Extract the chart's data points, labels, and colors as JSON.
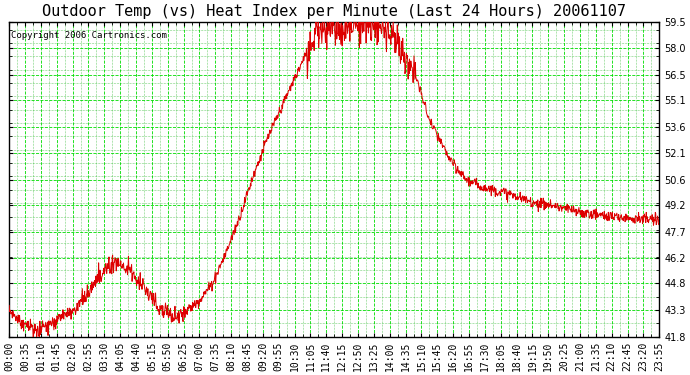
{
  "title": "Outdoor Temp (vs) Heat Index per Minute (Last 24 Hours) 20061107",
  "copyright": "Copyright 2006 Cartronics.com",
  "y_min": 41.8,
  "y_max": 59.5,
  "y_ticks": [
    41.8,
    43.3,
    44.8,
    46.2,
    47.7,
    49.2,
    50.6,
    52.1,
    53.6,
    55.1,
    56.5,
    58.0,
    59.5
  ],
  "line_color": "#dd0000",
  "grid_color": "#00dd00",
  "grid_minor_color": "#00aa00",
  "background_color": "#ffffff",
  "border_color": "#000000",
  "title_fontsize": 11,
  "copyright_fontsize": 6.5,
  "tick_fontsize": 7,
  "x_tick_labels": [
    "00:00",
    "00:35",
    "01:10",
    "01:45",
    "02:20",
    "02:55",
    "03:30",
    "04:05",
    "04:40",
    "05:15",
    "05:50",
    "06:25",
    "07:00",
    "07:35",
    "08:10",
    "08:45",
    "09:20",
    "09:55",
    "10:30",
    "11:05",
    "11:40",
    "12:15",
    "12:50",
    "13:25",
    "14:00",
    "14:35",
    "15:10",
    "15:45",
    "16:20",
    "16:55",
    "17:30",
    "18:05",
    "18:40",
    "19:15",
    "19:50",
    "20:25",
    "21:00",
    "21:35",
    "22:10",
    "22:45",
    "23:20",
    "23:55"
  ],
  "profile_keypoints_t": [
    0,
    0.5,
    1.0,
    1.5,
    2.0,
    2.5,
    3.0,
    3.5,
    4.0,
    4.5,
    5.0,
    5.5,
    6.0,
    6.5,
    7.0,
    7.5,
    8.0,
    8.5,
    9.0,
    9.5,
    10.0,
    10.5,
    11.0,
    11.5,
    12.0,
    12.5,
    13.0,
    13.5,
    14.0,
    14.5,
    15.0,
    15.5,
    16.0,
    16.5,
    17.0,
    17.5,
    18.0,
    18.5,
    19.0,
    19.5,
    20.0,
    20.5,
    21.0,
    21.5,
    22.0,
    22.5,
    23.0,
    23.5,
    24.0
  ],
  "profile_keypoints_v": [
    43.3,
    42.5,
    42.2,
    42.5,
    43.0,
    43.5,
    44.5,
    45.5,
    46.0,
    45.5,
    44.5,
    43.5,
    43.0,
    43.2,
    43.8,
    44.8,
    46.5,
    48.5,
    50.8,
    52.8,
    54.5,
    56.2,
    57.8,
    59.0,
    59.2,
    59.3,
    59.4,
    59.2,
    59.0,
    58.0,
    56.5,
    54.0,
    52.5,
    51.2,
    50.5,
    50.2,
    50.0,
    49.8,
    49.5,
    49.3,
    49.2,
    49.0,
    48.8,
    48.7,
    48.6,
    48.5,
    48.5,
    48.4,
    48.3
  ]
}
